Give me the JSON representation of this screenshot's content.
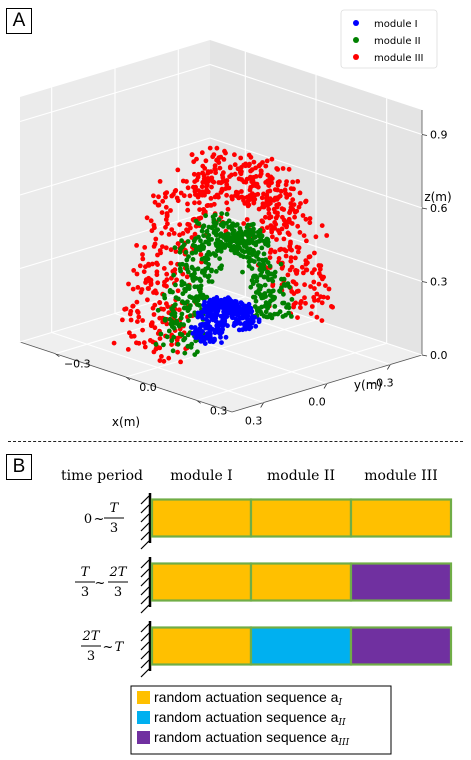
{
  "panel_a": {
    "label": "A",
    "chart_data": {
      "type": "scatter",
      "projection": "3d",
      "xlabel": "x(m)",
      "ylabel": "y(m)",
      "zlabel": "z(m)",
      "x_ticks": [
        "−0.3",
        "0.0",
        "0.3"
      ],
      "y_ticks": [
        "−0.3",
        "0.0",
        "0.3"
      ],
      "z_ticks": [
        "0.0",
        "0.3",
        "0.6",
        "0.9"
      ],
      "xlim": [
        -0.45,
        0.45
      ],
      "ylim": [
        -0.45,
        0.45
      ],
      "zlim": [
        0.0,
        1.0
      ],
      "grid": true,
      "legend_position": "top-right",
      "series": [
        {
          "name": "module I",
          "color": "#0000ff",
          "shape": "arc",
          "inner_radius": 0.07,
          "outer_radius": 0.13,
          "max_height": 0.14
        },
        {
          "name": "module II",
          "color": "#008000",
          "shape": "arc",
          "inner_radius": 0.2,
          "outer_radius": 0.28,
          "max_height": 0.48
        },
        {
          "name": "module III",
          "color": "#ff0000",
          "shape": "arc",
          "inner_radius": 0.32,
          "outer_radius": 0.45,
          "max_height": 0.75
        }
      ]
    }
  },
  "panel_b": {
    "label": "B",
    "header": {
      "time_period": "time period",
      "modules": [
        "module I",
        "module II",
        "module III"
      ]
    },
    "rows": [
      {
        "period": "0~T/3",
        "cells": [
          "a_I",
          "a_I",
          "a_I"
        ]
      },
      {
        "period": "T/3~2T/3",
        "cells": [
          "a_I",
          "a_I",
          "a_III"
        ]
      },
      {
        "period": "2T/3~T",
        "cells": [
          "a_I",
          "a_II",
          "a_III"
        ]
      }
    ],
    "legend": [
      {
        "key": "a_I",
        "text": "random actuation sequence a",
        "sub": "I",
        "color": "#ffc000"
      },
      {
        "key": "a_II",
        "text": "random actuation sequence a",
        "sub": "II",
        "color": "#00b0f0"
      },
      {
        "key": "a_III",
        "text": "random actuation sequence a",
        "sub": "III",
        "color": "#7030a0"
      }
    ],
    "border_color": "#70ad47"
  }
}
